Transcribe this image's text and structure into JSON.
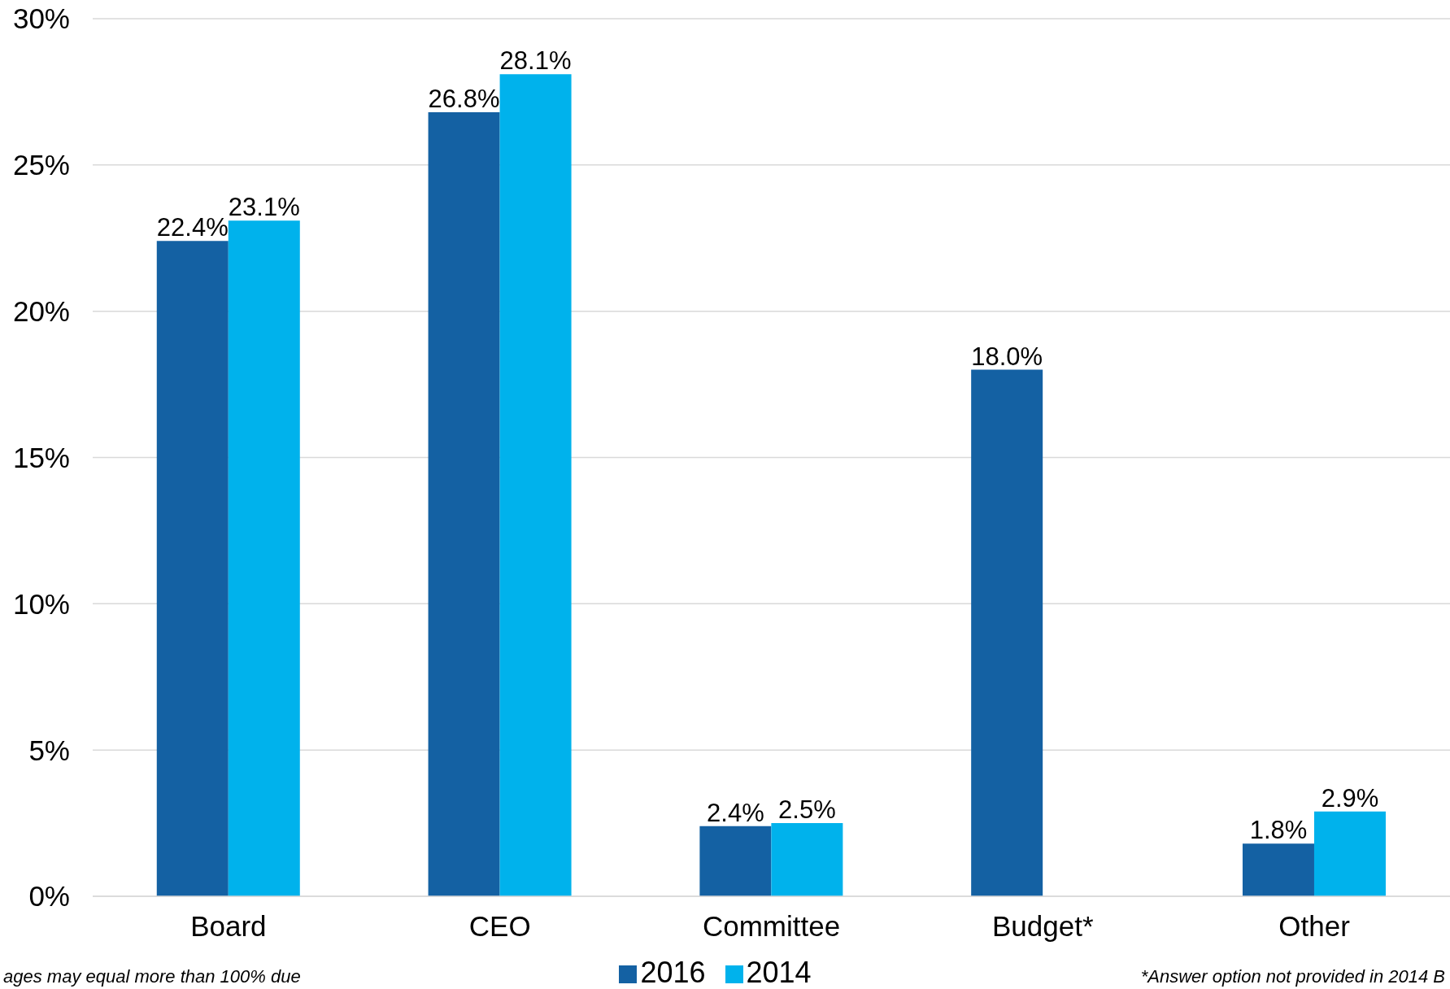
{
  "chart_data": {
    "type": "bar",
    "categories": [
      "Board",
      "CEO",
      "Committee",
      "Budget*",
      "Other"
    ],
    "series": [
      {
        "name": "2016",
        "color": "#1461a3",
        "values": [
          22.4,
          26.8,
          2.4,
          18.0,
          1.8
        ],
        "value_labels": [
          "22.4%",
          "26.8%",
          "2.4%",
          "18.0%",
          "1.8%"
        ]
      },
      {
        "name": "2014",
        "color": "#00b2ec",
        "values": [
          23.1,
          28.1,
          2.5,
          null,
          2.9
        ],
        "value_labels": [
          "23.1%",
          "28.1%",
          "2.5%",
          null,
          "2.9%"
        ]
      }
    ],
    "ylim": [
      0,
      30
    ],
    "yticks": [
      {
        "value": 0,
        "label": "0%"
      },
      {
        "value": 5,
        "label": "5%"
      },
      {
        "value": 10,
        "label": "10%"
      },
      {
        "value": 15,
        "label": "15%"
      },
      {
        "value": 20,
        "label": "20%"
      },
      {
        "value": 25,
        "label": "25%"
      },
      {
        "value": 30,
        "label": "30%"
      }
    ],
    "grid": "y",
    "legend": "bottom",
    "annotations": [
      "ages may equal more than 100% due",
      "*Answer option not provided in 2014 B"
    ]
  }
}
